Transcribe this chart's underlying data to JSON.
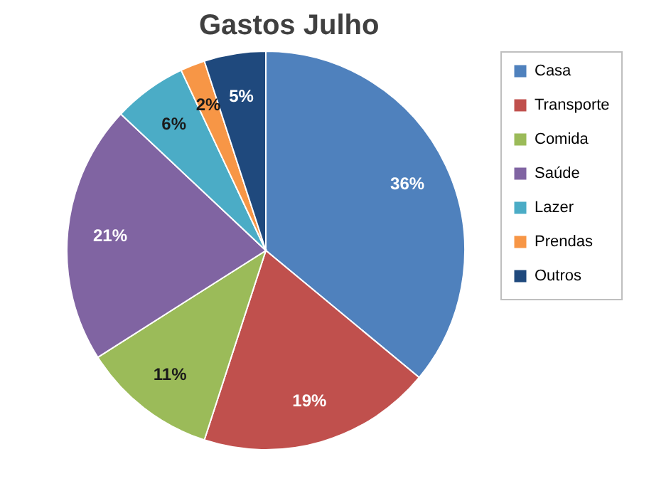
{
  "chart_data": {
    "type": "pie",
    "title": "Gastos Julho",
    "categories": [
      "Casa",
      "Transporte",
      "Comida",
      "Saúde",
      "Lazer",
      "Prendas",
      "Outros"
    ],
    "values": [
      36,
      19,
      11,
      21,
      6,
      2,
      5
    ],
    "colors": [
      "#4f81bd",
      "#c0504d",
      "#9bbb59",
      "#8064a2",
      "#4bacc6",
      "#f79646",
      "#1f497d"
    ],
    "value_labels": [
      "36%",
      "19%",
      "11%",
      "21%",
      "6%",
      "2%",
      "5%"
    ],
    "legend": "right"
  }
}
